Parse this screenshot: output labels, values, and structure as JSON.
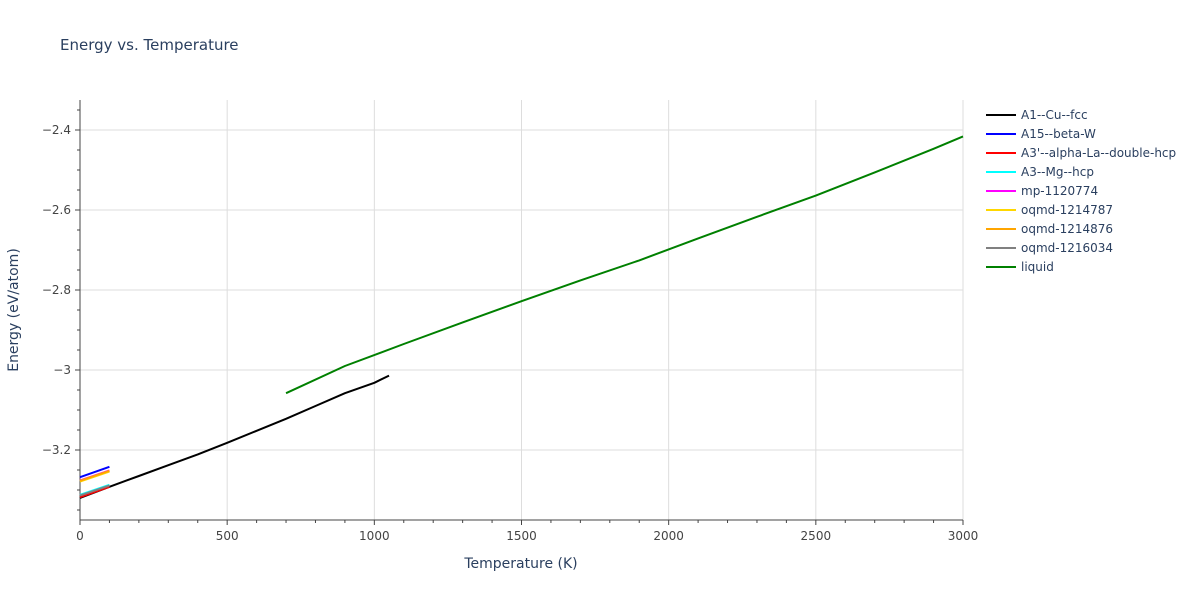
{
  "chart_data": {
    "type": "line",
    "title": "Energy vs. Temperature",
    "xlabel": "Temperature (K)",
    "ylabel": "Energy (eV/atom)",
    "xlim": [
      0,
      3000
    ],
    "ylim": [
      -3.375,
      -2.325
    ],
    "x_ticks": [
      0,
      500,
      1000,
      1500,
      2000,
      2500,
      3000
    ],
    "x_tick_labels": [
      "0",
      "500",
      "1000",
      "1500",
      "2000",
      "2500",
      "3000"
    ],
    "y_ticks": [
      -3.2,
      -3.0,
      -2.8,
      -2.6,
      -2.4
    ],
    "y_tick_labels": [
      "−3.2",
      "−3",
      "−2.8",
      "−2.6",
      "−2.4"
    ],
    "grid": true,
    "legend_position": "right",
    "series": [
      {
        "name": "A1--Cu--fcc",
        "color": "#000000",
        "x": [
          0,
          100,
          200,
          300,
          400,
          500,
          600,
          700,
          800,
          900,
          1000,
          1050
        ],
        "y": [
          -3.32,
          -3.292,
          -3.265,
          -3.238,
          -3.211,
          -3.182,
          -3.152,
          -3.122,
          -3.09,
          -3.058,
          -3.032,
          -3.014
        ]
      },
      {
        "name": "A15--beta-W",
        "color": "#0000ff",
        "x": [
          0,
          100
        ],
        "y": [
          -3.268,
          -3.242
        ]
      },
      {
        "name": "A3'--alpha-La--double-hcp",
        "color": "#ff0000",
        "x": [
          0,
          100
        ],
        "y": [
          -3.318,
          -3.292
        ]
      },
      {
        "name": "A3--Mg--hcp",
        "color": "#00ffff",
        "x": [
          0,
          100
        ],
        "y": [
          -3.312,
          -3.287
        ]
      },
      {
        "name": "mp-1120774",
        "color": "#ff00ff",
        "x": [
          0,
          100
        ],
        "y": [
          -3.276,
          -3.251
        ]
      },
      {
        "name": "oqmd-1214787",
        "color": "#ffd700",
        "x": [
          0,
          100
        ],
        "y": [
          -3.279,
          -3.254
        ]
      },
      {
        "name": "oqmd-1214876",
        "color": "#ffa500",
        "x": [
          0,
          100
        ],
        "y": [
          -3.277,
          -3.252
        ]
      },
      {
        "name": "oqmd-1216034",
        "color": "#808080",
        "x": [
          0,
          100
        ],
        "y": [
          -3.314,
          -3.289
        ]
      },
      {
        "name": "liquid",
        "color": "#008000",
        "x": [
          700,
          900,
          1100,
          1300,
          1500,
          1700,
          1900,
          2100,
          2300,
          2500,
          2700,
          2900,
          3000
        ],
        "y": [
          -3.058,
          -2.99,
          -2.935,
          -2.881,
          -2.828,
          -2.776,
          -2.726,
          -2.671,
          -2.617,
          -2.564,
          -2.506,
          -2.447,
          -2.416
        ]
      }
    ]
  }
}
